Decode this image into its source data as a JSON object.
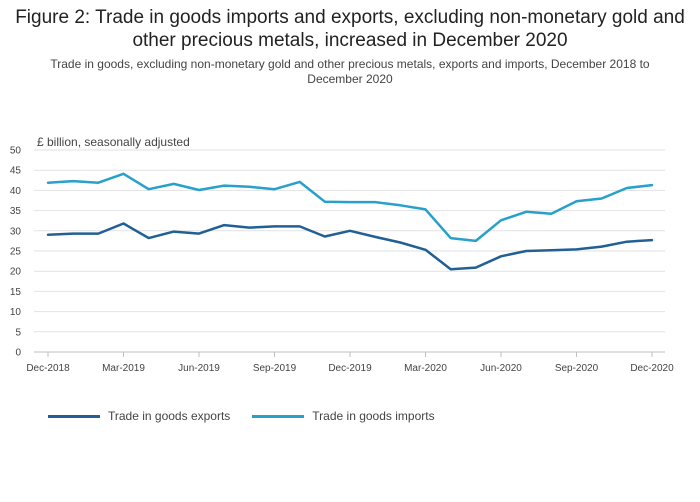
{
  "chart_data": {
    "type": "line",
    "title": "Figure 2: Trade in goods imports and exports, excluding non-monetary gold and other precious metals, increased in December 2020",
    "subtitle": "Trade in goods, excluding non-monetary gold and other precious metals, exports and imports, December 2018 to December 2020",
    "ylabel": "£ billion, seasonally adjusted",
    "ylim": [
      0,
      50
    ],
    "yticks": [
      "0",
      "5",
      "10",
      "15",
      "20",
      "25",
      "30",
      "35",
      "40",
      "45",
      "50"
    ],
    "xticks": [
      {
        "index": 0,
        "label": "Dec-2018"
      },
      {
        "index": 3,
        "label": "Mar-2019"
      },
      {
        "index": 6,
        "label": "Jun-2019"
      },
      {
        "index": 9,
        "label": "Sep-2019"
      },
      {
        "index": 12,
        "label": "Dec-2019"
      },
      {
        "index": 15,
        "label": "Mar-2020"
      },
      {
        "index": 18,
        "label": "Jun-2020"
      },
      {
        "index": 21,
        "label": "Sep-2020"
      },
      {
        "index": 24,
        "label": "Dec-2020"
      }
    ],
    "categories": [
      "Dec-2018",
      "Jan-2019",
      "Feb-2019",
      "Mar-2019",
      "Apr-2019",
      "May-2019",
      "Jun-2019",
      "Jul-2019",
      "Aug-2019",
      "Sep-2019",
      "Oct-2019",
      "Nov-2019",
      "Dec-2019",
      "Jan-2020",
      "Feb-2020",
      "Mar-2020",
      "Apr-2020",
      "May-2020",
      "Jun-2020",
      "Jul-2020",
      "Aug-2020",
      "Sep-2020",
      "Oct-2020",
      "Nov-2020",
      "Dec-2020"
    ],
    "series": [
      {
        "name": "Trade in goods exports",
        "color": "#206095",
        "values": [
          29.0,
          29.3,
          29.3,
          31.8,
          28.2,
          29.8,
          29.3,
          31.4,
          30.8,
          31.1,
          31.1,
          28.6,
          30.0,
          28.5,
          27.1,
          25.3,
          20.5,
          20.9,
          23.7,
          25.0,
          25.2,
          25.4,
          26.1,
          27.3,
          27.7
        ]
      },
      {
        "name": "Trade in goods imports",
        "color": "#27A0CC",
        "values": [
          41.9,
          42.3,
          41.9,
          44.1,
          40.3,
          41.6,
          40.1,
          41.2,
          40.9,
          40.3,
          42.1,
          37.2,
          37.1,
          37.1,
          36.3,
          35.3,
          28.2,
          27.5,
          32.6,
          34.7,
          34.2,
          37.3,
          38.0,
          40.6,
          41.3
        ]
      }
    ]
  }
}
